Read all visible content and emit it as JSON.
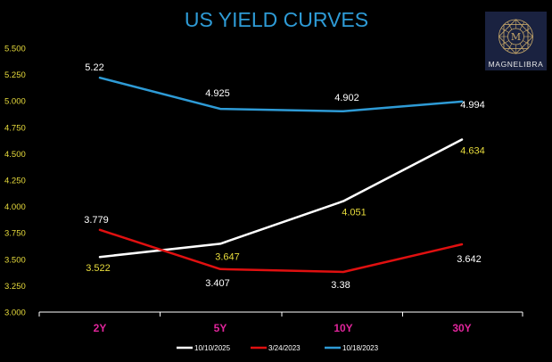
{
  "logo": {
    "text": "MAGNELIBRA",
    "emblem_letter": "M",
    "accent_color": "#c8a96a",
    "background_color": "#1a2240"
  },
  "chart_data": {
    "type": "line",
    "title": "US YIELD CURVES",
    "categories": [
      "2Y",
      "5Y",
      "10Y",
      "30Y"
    ],
    "yticks": [
      "3.000",
      "3.250",
      "3.500",
      "3.750",
      "4.000",
      "4.250",
      "4.500",
      "4.750",
      "5.000",
      "5.250",
      "5.500"
    ],
    "ylim": [
      3.0,
      5.5
    ],
    "grid": false,
    "legend_position": "bottom",
    "series": [
      {
        "name": "10/10/2025",
        "color": "#ffffff",
        "label_color": "#e8dc3c",
        "values": [
          3.522,
          3.647,
          4.051,
          4.634
        ],
        "labels": [
          "3.522",
          "3.647",
          "4.051",
          "4.634"
        ]
      },
      {
        "name": "3/24/2023",
        "color": "#e01010",
        "label_color": "#ffffff",
        "values": [
          3.779,
          3.407,
          3.38,
          3.642
        ],
        "labels": [
          "3.779",
          "3.407",
          "3.38",
          "3.642"
        ]
      },
      {
        "name": "10/18/2023",
        "color": "#2e9bd6",
        "label_color": "#ffffff",
        "values": [
          5.22,
          4.925,
          4.902,
          4.994
        ],
        "labels": [
          "5.22",
          "4.925",
          "4.902",
          "4.994"
        ]
      }
    ]
  }
}
